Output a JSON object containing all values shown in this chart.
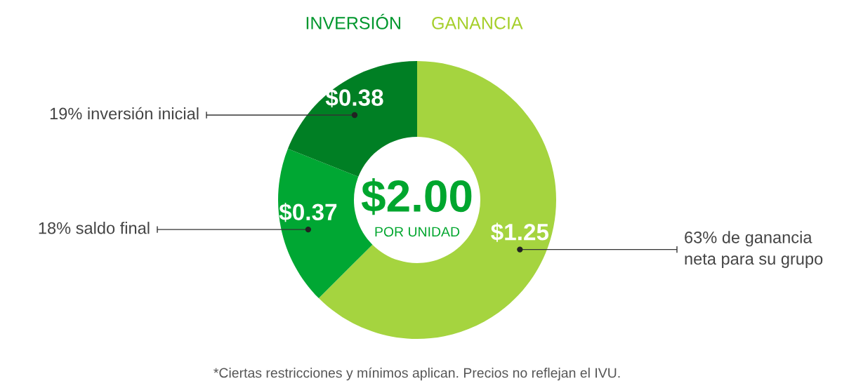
{
  "chart_data": {
    "type": "donut",
    "categories": [
      "63% de ganancia\nneta para su grupo",
      "18% saldo final",
      "19% inversión inicial"
    ],
    "values": [
      1.25,
      0.37,
      0.38
    ],
    "colors": [
      "#a5d43f",
      "#00a733",
      "#007f24"
    ],
    "value_labels": [
      "$1.25",
      "$0.37",
      "$0.38"
    ],
    "annotations": [
      "INVERSIÓN",
      "GANANCIA",
      "$2.00",
      "POR UNIDAD",
      "*Ciertas restricciones y mínimos aplican. Precios no reflejan el IVU."
    ]
  }
}
